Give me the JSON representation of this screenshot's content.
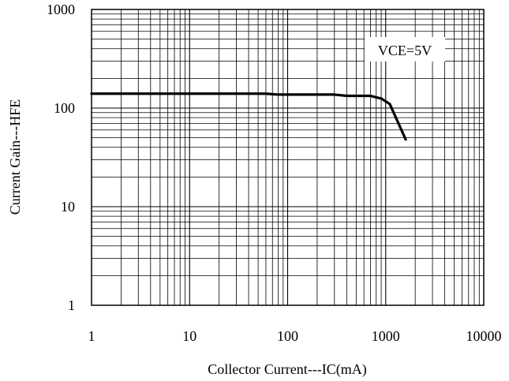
{
  "chart_data": {
    "type": "line",
    "xlabel": "Collector Current---IC(mA)",
    "ylabel": "Current Gain---HFE",
    "xscale": "log",
    "yscale": "log",
    "xlim": [
      1,
      10000
    ],
    "ylim": [
      1,
      1000
    ],
    "x_ticks": [
      "1",
      "10",
      "100",
      "1000",
      "10000"
    ],
    "y_ticks": [
      "1",
      "10",
      "100",
      "1000"
    ],
    "grid": true,
    "annotation": "VCE=5V",
    "series": [
      {
        "x": [
          1,
          10,
          60,
          80,
          300,
          400,
          700,
          900,
          1100,
          1600
        ],
        "y": [
          140,
          140,
          140,
          137,
          137,
          133,
          133,
          125,
          110,
          48
        ]
      }
    ]
  }
}
